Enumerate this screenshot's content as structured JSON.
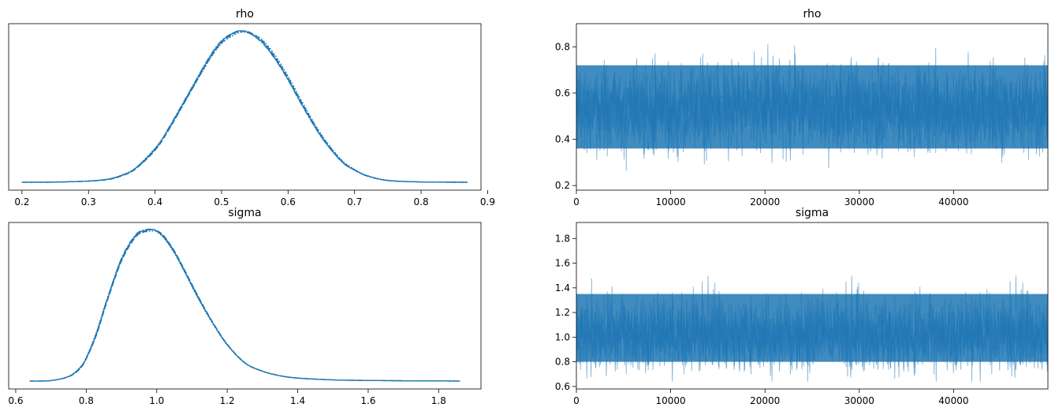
{
  "chart_data": [
    {
      "type": "line",
      "panel": "density",
      "title": "rho",
      "xlim": [
        0.18,
        0.89
      ],
      "xticks": [
        "0.2",
        "0.3",
        "0.4",
        "0.5",
        "0.6",
        "0.7",
        "0.8",
        "0.9"
      ],
      "xtick_values": [
        0.2,
        0.3,
        0.4,
        0.5,
        0.6,
        0.7,
        0.8,
        0.9
      ],
      "yticks": [],
      "color": "#1f77b4",
      "x": [
        0.2,
        0.25,
        0.3,
        0.33,
        0.35,
        0.37,
        0.4,
        0.42,
        0.45,
        0.48,
        0.5,
        0.52,
        0.53,
        0.54,
        0.56,
        0.58,
        0.6,
        0.62,
        0.65,
        0.68,
        0.7,
        0.72,
        0.75,
        0.8,
        0.87
      ],
      "series": [
        {
          "values": [
            0.0,
            0.001,
            0.008,
            0.02,
            0.045,
            0.09,
            0.22,
            0.35,
            0.58,
            0.81,
            0.93,
            0.99,
            1.0,
            0.99,
            0.93,
            0.82,
            0.68,
            0.52,
            0.3,
            0.14,
            0.08,
            0.04,
            0.012,
            0.002,
            0.0
          ]
        },
        {
          "values": [
            0.0,
            0.001,
            0.007,
            0.018,
            0.042,
            0.085,
            0.21,
            0.34,
            0.57,
            0.8,
            0.92,
            0.985,
            0.995,
            0.995,
            0.94,
            0.83,
            0.69,
            0.53,
            0.31,
            0.145,
            0.082,
            0.041,
            0.012,
            0.002,
            0.0
          ]
        },
        {
          "values": [
            0.0,
            0.001,
            0.009,
            0.022,
            0.048,
            0.092,
            0.225,
            0.345,
            0.57,
            0.795,
            0.915,
            0.975,
            0.99,
            0.985,
            0.945,
            0.84,
            0.7,
            0.54,
            0.315,
            0.15,
            0.085,
            0.043,
            0.013,
            0.002,
            0.0
          ]
        },
        {
          "values": [
            0.0,
            0.002,
            0.008,
            0.021,
            0.046,
            0.088,
            0.215,
            0.355,
            0.585,
            0.815,
            0.935,
            0.992,
            0.998,
            0.988,
            0.925,
            0.815,
            0.675,
            0.515,
            0.298,
            0.138,
            0.079,
            0.039,
            0.011,
            0.002,
            0.0
          ]
        }
      ]
    },
    {
      "type": "line",
      "panel": "trace",
      "title": "rho",
      "xlim": [
        0,
        50000
      ],
      "ylim": [
        0.18,
        0.9
      ],
      "xticks": [
        "0",
        "10000",
        "20000",
        "30000",
        "40000"
      ],
      "xtick_values": [
        0,
        10000,
        20000,
        30000,
        40000
      ],
      "yticks": [
        "0.2",
        "0.4",
        "0.6",
        "0.8"
      ],
      "ytick_values": [
        0.2,
        0.4,
        0.6,
        0.8
      ],
      "color": "#1f77b4",
      "draws": 50000,
      "mean": 0.535,
      "band": [
        0.36,
        0.72
      ],
      "range": [
        0.2,
        0.87
      ]
    },
    {
      "type": "line",
      "panel": "density",
      "title": "sigma",
      "xlim": [
        0.58,
        1.92
      ],
      "xticks": [
        "0.6",
        "0.8",
        "1.0",
        "1.2",
        "1.4",
        "1.6",
        "1.8"
      ],
      "xtick_values": [
        0.6,
        0.8,
        1.0,
        1.2,
        1.4,
        1.6,
        1.8
      ],
      "yticks": [],
      "color": "#1f77b4",
      "x": [
        0.64,
        0.7,
        0.75,
        0.78,
        0.8,
        0.83,
        0.86,
        0.9,
        0.94,
        0.97,
        0.99,
        1.0,
        1.02,
        1.05,
        1.08,
        1.12,
        1.16,
        1.2,
        1.25,
        1.3,
        1.35,
        1.4,
        1.5,
        1.6,
        1.7,
        1.86
      ],
      "series": [
        {
          "values": [
            0.0,
            0.003,
            0.03,
            0.08,
            0.15,
            0.32,
            0.54,
            0.8,
            0.96,
            0.995,
            1.0,
            0.99,
            0.95,
            0.85,
            0.72,
            0.54,
            0.38,
            0.24,
            0.12,
            0.065,
            0.035,
            0.02,
            0.008,
            0.004,
            0.002,
            0.0
          ]
        },
        {
          "values": [
            0.0,
            0.003,
            0.028,
            0.075,
            0.145,
            0.31,
            0.53,
            0.79,
            0.95,
            0.99,
            1.0,
            0.995,
            0.96,
            0.86,
            0.73,
            0.55,
            0.385,
            0.245,
            0.122,
            0.066,
            0.036,
            0.02,
            0.008,
            0.004,
            0.002,
            0.0
          ]
        },
        {
          "values": [
            0.0,
            0.004,
            0.032,
            0.085,
            0.155,
            0.33,
            0.55,
            0.805,
            0.955,
            0.985,
            0.99,
            0.985,
            0.945,
            0.845,
            0.715,
            0.535,
            0.375,
            0.238,
            0.118,
            0.064,
            0.034,
            0.019,
            0.008,
            0.004,
            0.002,
            0.0
          ]
        },
        {
          "values": [
            0.0,
            0.003,
            0.03,
            0.082,
            0.152,
            0.325,
            0.545,
            0.81,
            0.965,
            1.0,
            1.0,
            0.99,
            0.955,
            0.855,
            0.725,
            0.545,
            0.38,
            0.242,
            0.121,
            0.065,
            0.035,
            0.02,
            0.008,
            0.004,
            0.002,
            0.0
          ]
        }
      ]
    },
    {
      "type": "line",
      "panel": "trace",
      "title": "sigma",
      "xlim": [
        0,
        50000
      ],
      "ylim": [
        0.58,
        1.93
      ],
      "xticks": [
        "0",
        "10000",
        "20000",
        "30000",
        "40000"
      ],
      "xtick_values": [
        0,
        10000,
        20000,
        30000,
        40000
      ],
      "yticks": [
        "0.6",
        "0.8",
        "1.0",
        "1.2",
        "1.4",
        "1.6",
        "1.8"
      ],
      "ytick_values": [
        0.6,
        0.8,
        1.0,
        1.2,
        1.4,
        1.6,
        1.8
      ],
      "color": "#1f77b4",
      "draws": 50000,
      "mean": 1.02,
      "band": [
        0.8,
        1.35
      ],
      "range": [
        0.64,
        1.86
      ]
    }
  ]
}
